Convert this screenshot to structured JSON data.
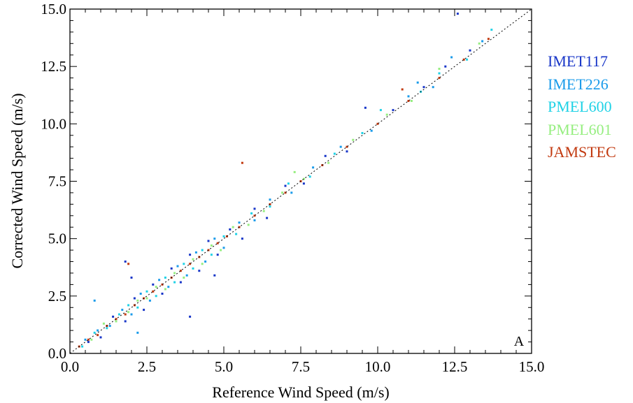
{
  "chart_data": {
    "type": "scatter",
    "title": "",
    "xlabel": "Reference Wind Speed (m/s)",
    "ylabel": "Corrected Wind Speed (m/s)",
    "xlim": [
      0,
      15
    ],
    "ylim": [
      0,
      15
    ],
    "xticks": [
      "0.0",
      "2.5",
      "5.0",
      "7.5",
      "10.0",
      "12.5",
      "15.0"
    ],
    "yticks": [
      "0.0",
      "2.5",
      "5.0",
      "7.5",
      "10.0",
      "12.5",
      "15.0"
    ],
    "panel_label": "A",
    "reference_line": {
      "style": "dotted",
      "x": [
        0,
        15
      ],
      "y": [
        0,
        15
      ]
    },
    "grid": false,
    "legend_position": "right",
    "series": [
      {
        "name": "IMET117",
        "color": "#1836c8",
        "points": [
          [
            0.6,
            0.5
          ],
          [
            1.0,
            0.7
          ],
          [
            1.4,
            1.6
          ],
          [
            1.8,
            1.4
          ],
          [
            2.1,
            2.4
          ],
          [
            2.4,
            1.9
          ],
          [
            2.7,
            3.0
          ],
          [
            3.0,
            2.6
          ],
          [
            3.3,
            3.7
          ],
          [
            3.6,
            3.1
          ],
          [
            3.9,
            4.3
          ],
          [
            4.2,
            3.6
          ],
          [
            4.5,
            4.9
          ],
          [
            4.8,
            4.3
          ],
          [
            5.2,
            5.4
          ],
          [
            5.6,
            5.0
          ],
          [
            6.0,
            6.3
          ],
          [
            6.4,
            5.9
          ],
          [
            7.0,
            7.3
          ],
          [
            7.6,
            7.4
          ],
          [
            8.3,
            8.6
          ],
          [
            9.0,
            8.8
          ],
          [
            10.5,
            10.6
          ],
          [
            11.5,
            11.6
          ],
          [
            12.2,
            12.5
          ],
          [
            13.0,
            13.2
          ],
          [
            3.9,
            1.6
          ],
          [
            1.8,
            4.0
          ],
          [
            9.6,
            10.7
          ],
          [
            12.6,
            14.8
          ],
          [
            2.0,
            3.3
          ],
          [
            4.7,
            3.4
          ]
        ]
      },
      {
        "name": "IMET226",
        "color": "#1a9bea",
        "points": [
          [
            0.5,
            0.6
          ],
          [
            0.9,
            1.0
          ],
          [
            1.3,
            1.2
          ],
          [
            1.7,
            1.9
          ],
          [
            2.0,
            1.7
          ],
          [
            2.3,
            2.6
          ],
          [
            2.6,
            2.3
          ],
          [
            2.9,
            3.2
          ],
          [
            3.2,
            2.9
          ],
          [
            3.5,
            3.8
          ],
          [
            3.8,
            3.4
          ],
          [
            4.1,
            4.4
          ],
          [
            4.4,
            4.0
          ],
          [
            4.7,
            5.0
          ],
          [
            5.0,
            4.6
          ],
          [
            5.5,
            5.7
          ],
          [
            6.0,
            5.8
          ],
          [
            6.5,
            6.7
          ],
          [
            7.2,
            7.0
          ],
          [
            7.9,
            8.1
          ],
          [
            8.8,
            9.0
          ],
          [
            9.8,
            9.7
          ],
          [
            11.0,
            11.2
          ],
          [
            11.8,
            11.6
          ],
          [
            12.4,
            12.9
          ],
          [
            13.4,
            13.6
          ],
          [
            11.3,
            11.8
          ],
          [
            2.2,
            0.9
          ],
          [
            0.8,
            2.3
          ]
        ]
      },
      {
        "name": "PMEL600",
        "color": "#1fd2e6",
        "points": [
          [
            0.4,
            0.3
          ],
          [
            0.8,
            0.9
          ],
          [
            1.2,
            1.1
          ],
          [
            1.6,
            1.7
          ],
          [
            1.9,
            2.1
          ],
          [
            2.2,
            2.0
          ],
          [
            2.5,
            2.7
          ],
          [
            2.8,
            2.5
          ],
          [
            3.1,
            3.3
          ],
          [
            3.4,
            3.1
          ],
          [
            3.7,
            3.9
          ],
          [
            4.0,
            3.7
          ],
          [
            4.3,
            4.5
          ],
          [
            4.6,
            4.3
          ],
          [
            5.0,
            5.1
          ],
          [
            5.4,
            5.2
          ],
          [
            5.9,
            6.1
          ],
          [
            6.5,
            6.4
          ],
          [
            7.1,
            7.4
          ],
          [
            7.8,
            7.7
          ],
          [
            8.6,
            8.7
          ],
          [
            9.5,
            9.6
          ],
          [
            10.1,
            10.6
          ],
          [
            11.4,
            11.4
          ],
          [
            12.0,
            12.2
          ],
          [
            12.9,
            12.8
          ],
          [
            13.7,
            14.1
          ]
        ]
      },
      {
        "name": "PMEL601",
        "color": "#96ee80",
        "points": [
          [
            0.7,
            0.6
          ],
          [
            1.1,
            1.3
          ],
          [
            1.5,
            1.4
          ],
          [
            1.9,
            1.8
          ],
          [
            2.2,
            2.3
          ],
          [
            2.5,
            2.4
          ],
          [
            2.8,
            2.9
          ],
          [
            3.1,
            2.8
          ],
          [
            3.4,
            3.5
          ],
          [
            3.7,
            3.3
          ],
          [
            4.0,
            4.1
          ],
          [
            4.3,
            3.9
          ],
          [
            4.6,
            4.7
          ],
          [
            4.9,
            4.5
          ],
          [
            5.3,
            5.5
          ],
          [
            5.8,
            5.6
          ],
          [
            6.3,
            6.2
          ],
          [
            6.9,
            7.0
          ],
          [
            7.6,
            7.6
          ],
          [
            8.4,
            8.3
          ],
          [
            9.2,
            9.3
          ],
          [
            10.3,
            10.4
          ],
          [
            11.1,
            11.0
          ],
          [
            12.0,
            12.4
          ],
          [
            13.3,
            13.5
          ],
          [
            7.3,
            7.9
          ]
        ]
      },
      {
        "name": "JAMSTEC",
        "color": "#c23a10",
        "points": [
          [
            0.3,
            0.3
          ],
          [
            0.6,
            0.6
          ],
          [
            0.9,
            0.8
          ],
          [
            1.2,
            1.2
          ],
          [
            1.5,
            1.5
          ],
          [
            1.8,
            1.7
          ],
          [
            2.1,
            2.1
          ],
          [
            2.4,
            2.4
          ],
          [
            2.7,
            2.7
          ],
          [
            3.0,
            3.0
          ],
          [
            3.3,
            3.3
          ],
          [
            3.6,
            3.6
          ],
          [
            3.9,
            3.9
          ],
          [
            4.2,
            4.2
          ],
          [
            4.5,
            4.5
          ],
          [
            4.8,
            4.8
          ],
          [
            5.1,
            5.1
          ],
          [
            5.5,
            5.5
          ],
          [
            6.0,
            6.0
          ],
          [
            6.5,
            6.5
          ],
          [
            7.0,
            7.0
          ],
          [
            7.5,
            7.5
          ],
          [
            8.2,
            8.2
          ],
          [
            9.0,
            9.0
          ],
          [
            10.0,
            10.0
          ],
          [
            11.0,
            11.0
          ],
          [
            12.0,
            12.0
          ],
          [
            12.8,
            12.8
          ],
          [
            13.6,
            13.7
          ],
          [
            5.6,
            8.3
          ],
          [
            1.9,
            3.9
          ],
          [
            10.8,
            11.5
          ]
        ]
      }
    ]
  }
}
